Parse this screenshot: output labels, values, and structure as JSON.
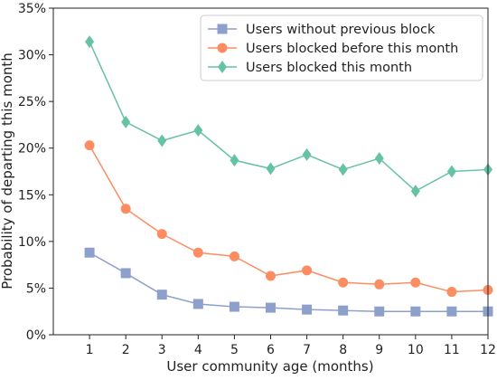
{
  "chart_data": {
    "type": "line",
    "title": "",
    "xlabel": "User community age (months)",
    "ylabel": "Probability of departing this month",
    "x": [
      1,
      2,
      3,
      4,
      5,
      6,
      7,
      8,
      9,
      10,
      11,
      12
    ],
    "x_ticks": [
      "1",
      "2",
      "3",
      "4",
      "5",
      "6",
      "7",
      "8",
      "9",
      "10",
      "11",
      "12"
    ],
    "xlim": [
      0,
      12
    ],
    "ylim": [
      0,
      35
    ],
    "y_ticks": [
      "0%",
      "5%",
      "10%",
      "15%",
      "20%",
      "25%",
      "30%",
      "35%"
    ],
    "grid": false,
    "legend_position": "top-right",
    "series": [
      {
        "name": "Users without previous block",
        "marker": "square",
        "color": "#8da0cb",
        "values": [
          8.8,
          6.6,
          4.3,
          3.3,
          3.0,
          2.9,
          2.7,
          2.6,
          2.5,
          2.5,
          2.5,
          2.5
        ]
      },
      {
        "name": "Users blocked before this month",
        "marker": "circle",
        "color": "#fc8d62",
        "values": [
          20.3,
          13.5,
          10.8,
          8.8,
          8.4,
          6.3,
          6.9,
          5.6,
          5.4,
          5.6,
          4.6,
          4.8
        ]
      },
      {
        "name": "Users blocked this month",
        "marker": "diamond",
        "color": "#66c2a5",
        "values": [
          31.4,
          22.8,
          20.8,
          21.9,
          18.7,
          17.8,
          19.3,
          17.7,
          18.9,
          15.4,
          17.5,
          17.7
        ]
      }
    ]
  }
}
